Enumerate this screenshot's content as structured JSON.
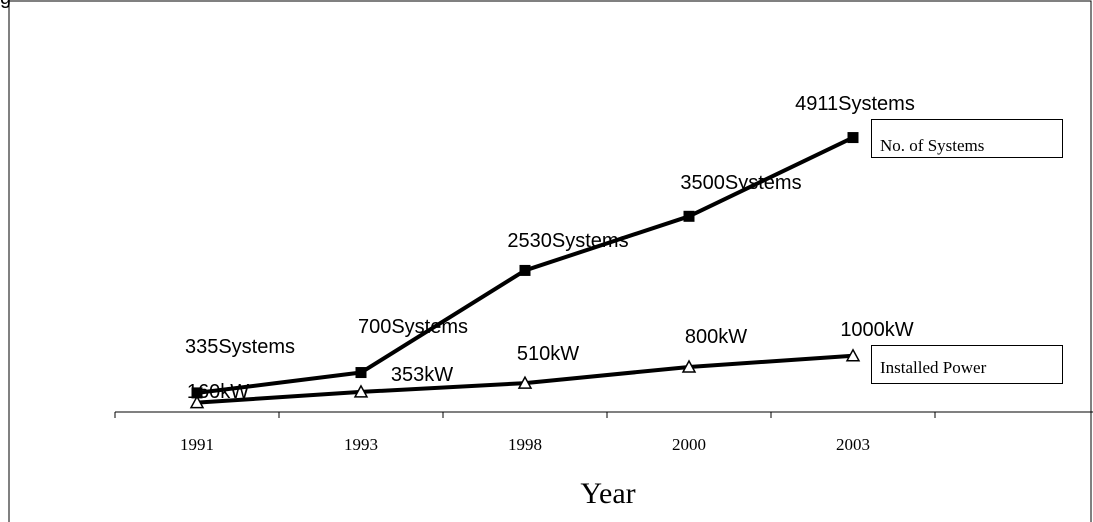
{
  "chart_data": {
    "type": "line",
    "title_fragment": "g",
    "categories": [
      "1991",
      "1993",
      "1998",
      "2000",
      "2003"
    ],
    "xlabel": "Year",
    "series": [
      {
        "name": "No. of Systems",
        "values": [
          335,
          700,
          2530,
          3500,
          4911
        ],
        "labels": [
          "335Systems",
          "700Systems",
          "2530Systems",
          "3500Systems",
          "4911Systems"
        ],
        "marker": "square",
        "color": "#000000"
      },
      {
        "name": "Installed Power",
        "values": [
          160,
          353,
          510,
          800,
          1000
        ],
        "labels": [
          "160kW",
          "353kW",
          "510kW",
          "800kW",
          "1000kW"
        ],
        "marker": "triangle",
        "color": "#000000"
      }
    ],
    "grid": false,
    "legend": "right"
  }
}
